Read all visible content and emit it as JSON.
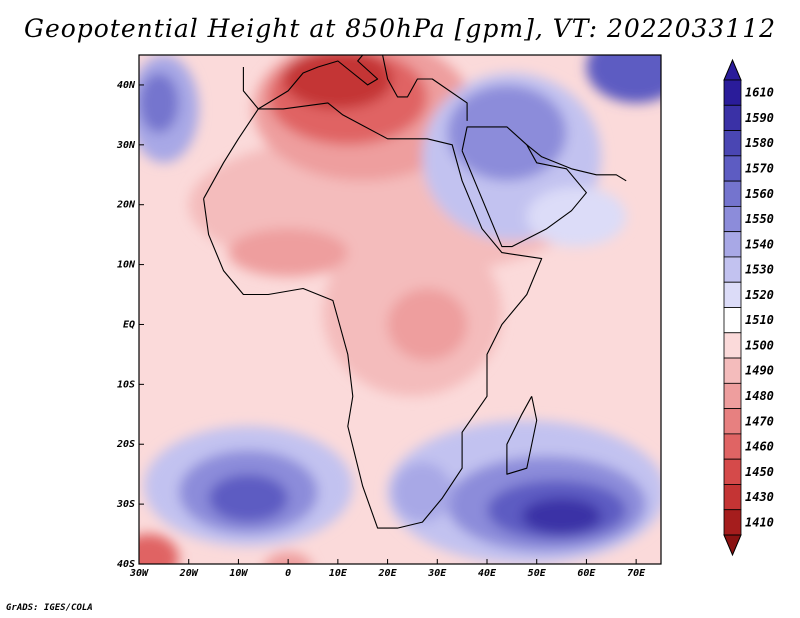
{
  "title": "Geopotential Height at 850hPa [gpm], VT: 2022033112",
  "credit": "GrADS: IGES/COLA",
  "map": {
    "lon_range": [
      -30,
      75
    ],
    "lat_range": [
      -40,
      45
    ],
    "lon_ticks": [
      {
        "value": -30,
        "label": "30W"
      },
      {
        "value": -20,
        "label": "20W"
      },
      {
        "value": -10,
        "label": "10W"
      },
      {
        "value": 0,
        "label": "0"
      },
      {
        "value": 10,
        "label": "10E"
      },
      {
        "value": 20,
        "label": "20E"
      },
      {
        "value": 30,
        "label": "30E"
      },
      {
        "value": 40,
        "label": "40E"
      },
      {
        "value": 50,
        "label": "50E"
      },
      {
        "value": 60,
        "label": "60E"
      },
      {
        "value": 70,
        "label": "70E"
      }
    ],
    "lat_ticks": [
      {
        "value": 40,
        "label": "40N"
      },
      {
        "value": 30,
        "label": "30N"
      },
      {
        "value": 20,
        "label": "20N"
      },
      {
        "value": 10,
        "label": "10N"
      },
      {
        "value": 0,
        "label": "EQ"
      },
      {
        "value": -10,
        "label": "10S"
      },
      {
        "value": -20,
        "label": "20S"
      },
      {
        "value": -30,
        "label": "30S"
      },
      {
        "value": -40,
        "label": "40S"
      }
    ]
  },
  "colorbar": {
    "levels": [
      {
        "label": "1610",
        "color": "#2a1c9a"
      },
      {
        "label": "1590",
        "color": "#3a31a6"
      },
      {
        "label": "1580",
        "color": "#4a46b3"
      },
      {
        "label": "1570",
        "color": "#5d5cc2"
      },
      {
        "label": "1560",
        "color": "#7474ce"
      },
      {
        "label": "1550",
        "color": "#8c8cda"
      },
      {
        "label": "1540",
        "color": "#a8a8e6"
      },
      {
        "label": "1530",
        "color": "#c2c2f0"
      },
      {
        "label": "1520",
        "color": "#dcdcf8"
      },
      {
        "label": "1510",
        "color": "#ffffff"
      },
      {
        "label": "1500",
        "color": "#fbdada"
      },
      {
        "label": "1490",
        "color": "#f4bcbc"
      },
      {
        "label": "1480",
        "color": "#ee9e9e"
      },
      {
        "label": "1470",
        "color": "#e78080"
      },
      {
        "label": "1460",
        "color": "#e06464"
      },
      {
        "label": "1450",
        "color": "#d54a4a"
      },
      {
        "label": "1430",
        "color": "#c43434"
      },
      {
        "label": "1410",
        "color": "#a51d1d"
      }
    ],
    "bottom_color": "#8a1212"
  },
  "field": {
    "background_color": "#fbdada",
    "blobs": [
      {
        "name": "tropical-belt-high",
        "lon": 20,
        "lat": 20,
        "rx": 40,
        "ry": 12,
        "color": "#f4bcbc"
      },
      {
        "name": "mediterranean-low-outer",
        "lon": 15,
        "lat": 36,
        "rx": 22,
        "ry": 12,
        "color": "#ee9e9e"
      },
      {
        "name": "mediterranean-low-mid",
        "lon": 12,
        "lat": 38,
        "rx": 16,
        "ry": 8,
        "color": "#e06464"
      },
      {
        "name": "mediterranean-low-core",
        "lon": 10,
        "lat": 41,
        "rx": 11,
        "ry": 5,
        "color": "#c43434"
      },
      {
        "name": "middle-east-high-outer",
        "lon": 45,
        "lat": 28,
        "rx": 18,
        "ry": 14,
        "color": "#c2c2f0"
      },
      {
        "name": "middle-east-high-mid",
        "lon": 44,
        "lat": 32,
        "rx": 12,
        "ry": 8,
        "color": "#8c8cda"
      },
      {
        "name": "asia-high",
        "lon": 70,
        "lat": 43,
        "rx": 10,
        "ry": 6,
        "color": "#5d5cc2"
      },
      {
        "name": "arabia-edge-high",
        "lon": 58,
        "lat": 18,
        "rx": 10,
        "ry": 5,
        "color": "#dcdcf8"
      },
      {
        "name": "atlantic-high-north-outer",
        "lon": -25,
        "lat": 36,
        "rx": 7,
        "ry": 9,
        "color": "#a8a8e6"
      },
      {
        "name": "atlantic-high-north-core",
        "lon": -26,
        "lat": 37,
        "rx": 4,
        "ry": 5,
        "color": "#7474ce"
      },
      {
        "name": "east-africa-low-outer",
        "lon": 25,
        "lat": 2,
        "rx": 18,
        "ry": 14,
        "color": "#f4bcbc"
      },
      {
        "name": "east-africa-low-core",
        "lon": 28,
        "lat": 0,
        "rx": 8,
        "ry": 6,
        "color": "#ee9e9e"
      },
      {
        "name": "sahel-low",
        "lon": 0,
        "lat": 12,
        "rx": 12,
        "ry": 4,
        "color": "#ee9e9e"
      },
      {
        "name": "south-atlantic-high-outer",
        "lon": -8,
        "lat": -27,
        "rx": 21,
        "ry": 10,
        "color": "#c2c2f0"
      },
      {
        "name": "south-atlantic-high-mid",
        "lon": -8,
        "lat": -28,
        "rx": 14,
        "ry": 7,
        "color": "#8c8cda"
      },
      {
        "name": "south-atlantic-high-core",
        "lon": -8,
        "lat": -29,
        "rx": 8,
        "ry": 4,
        "color": "#5d5cc2"
      },
      {
        "name": "indian-ocean-high-outer",
        "lon": 48,
        "lat": -28,
        "rx": 28,
        "ry": 12,
        "color": "#c2c2f0"
      },
      {
        "name": "indian-ocean-high-mid",
        "lon": 52,
        "lat": -30,
        "rx": 20,
        "ry": 8,
        "color": "#8c8cda"
      },
      {
        "name": "indian-ocean-high-inner",
        "lon": 54,
        "lat": -31,
        "rx": 14,
        "ry": 5,
        "color": "#5d5cc2"
      },
      {
        "name": "indian-ocean-high-core",
        "lon": 55,
        "lat": -32,
        "rx": 8,
        "ry": 3,
        "color": "#3a31a6"
      },
      {
        "name": "south-africa-high",
        "lon": 27,
        "lat": -28,
        "rx": 6,
        "ry": 5,
        "color": "#a8a8e6"
      },
      {
        "name": "southwest-low",
        "lon": -28,
        "lat": -39,
        "rx": 6,
        "ry": 4,
        "color": "#e06464"
      },
      {
        "name": "south-low",
        "lon": 0,
        "lat": -41,
        "rx": 5,
        "ry": 3,
        "color": "#ee9e9e"
      }
    ]
  },
  "coastlines": [
    {
      "name": "africa-coastline",
      "points": [
        [
          -17,
          21
        ],
        [
          -16,
          15
        ],
        [
          -13,
          9
        ],
        [
          -9,
          5
        ],
        [
          -4,
          5
        ],
        [
          3,
          6
        ],
        [
          9,
          4
        ],
        [
          10,
          1
        ],
        [
          12,
          -5
        ],
        [
          13,
          -12
        ],
        [
          12,
          -17
        ],
        [
          15,
          -27
        ],
        [
          18,
          -34
        ],
        [
          22,
          -34
        ],
        [
          27,
          -33
        ],
        [
          31,
          -29
        ],
        [
          35,
          -24
        ],
        [
          35,
          -18
        ],
        [
          40,
          -12
        ],
        [
          40,
          -5
        ],
        [
          43,
          0
        ],
        [
          48,
          5
        ],
        [
          51,
          11
        ],
        [
          43,
          12
        ],
        [
          39,
          16
        ],
        [
          35,
          24
        ],
        [
          33,
          30
        ],
        [
          28,
          31
        ],
        [
          20,
          31
        ],
        [
          11,
          35
        ],
        [
          8,
          37
        ],
        [
          -1,
          36
        ],
        [
          -6,
          36
        ],
        [
          -10,
          31
        ],
        [
          -13,
          27
        ],
        [
          -17,
          21
        ]
      ]
    },
    {
      "name": "madagascar-coastline",
      "points": [
        [
          49,
          -12
        ],
        [
          50,
          -16
        ],
        [
          48,
          -24
        ],
        [
          44,
          -25
        ],
        [
          44,
          -20
        ],
        [
          47,
          -15
        ],
        [
          49,
          -12
        ]
      ]
    },
    {
      "name": "arabia-coastline",
      "points": [
        [
          35,
          29
        ],
        [
          39,
          21
        ],
        [
          43,
          13
        ],
        [
          45,
          13
        ],
        [
          52,
          16
        ],
        [
          57,
          19
        ],
        [
          60,
          22
        ],
        [
          56,
          26
        ],
        [
          50,
          27
        ],
        [
          48,
          30
        ],
        [
          44,
          33
        ],
        [
          36,
          33
        ],
        [
          35,
          29
        ]
      ]
    },
    {
      "name": "europe-coastline",
      "points": [
        [
          -9,
          43
        ],
        [
          -9,
          39
        ],
        [
          -6,
          36
        ],
        [
          0,
          39
        ],
        [
          3,
          42
        ],
        [
          6,
          43
        ],
        [
          10,
          44
        ],
        [
          13,
          42
        ],
        [
          16,
          40
        ],
        [
          18,
          41
        ],
        [
          14,
          44
        ],
        [
          15,
          45
        ]
      ]
    },
    {
      "name": "balkans-coastline",
      "points": [
        [
          19,
          45
        ],
        [
          20,
          41
        ],
        [
          22,
          38
        ],
        [
          24,
          38
        ],
        [
          26,
          41
        ],
        [
          29,
          41
        ],
        [
          36,
          37
        ],
        [
          36,
          34
        ]
      ]
    },
    {
      "name": "iran-coastline",
      "points": [
        [
          48,
          30
        ],
        [
          51,
          28
        ],
        [
          57,
          26
        ],
        [
          62,
          25
        ],
        [
          66,
          25
        ],
        [
          68,
          24
        ]
      ]
    }
  ]
}
